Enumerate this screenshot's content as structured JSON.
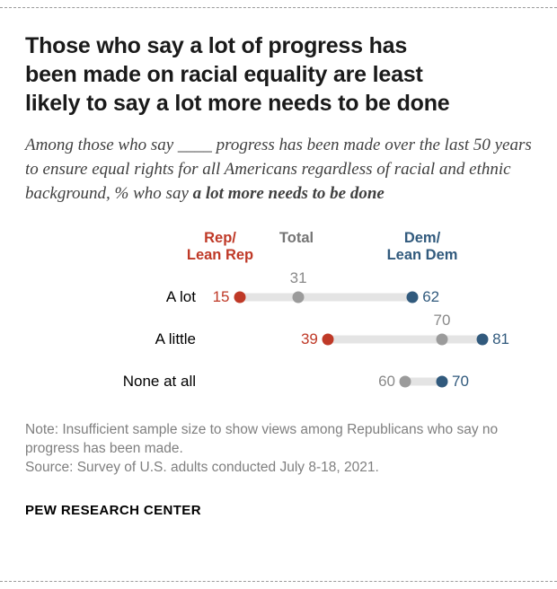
{
  "page": {
    "title_lines": [
      "Those who say a lot of progress has",
      "been made on racial equality are least",
      "likely to say a lot more needs to be done"
    ],
    "subtitle_normal": "Among those who say ____ progress has been made over the last 50 years to ensure equal rights for all Americans regardless of racial and ethnic background, % who say ",
    "subtitle_bold": "a lot more needs to be done",
    "note_line": "Note: Insufficient sample size to show views among Republicans who say no progress has been made.",
    "source_line": "Source: Survey of U.S. adults conducted July 8-18, 2021.",
    "footer": "PEW RESEARCH CENTER"
  },
  "chart_data": {
    "type": "scatter",
    "subtype": "dot-plot",
    "categories": [
      "A lot",
      "A little",
      "None at all"
    ],
    "xlim": [
      0,
      100
    ],
    "grid": false,
    "legend_position": "top",
    "track_color": "#e4e4e4",
    "series": [
      {
        "id": "rep",
        "name": "Rep/Lean Rep",
        "label_lines": [
          "Rep/",
          "Lean Rep"
        ],
        "dot_color": "#bf3927",
        "text_color": "#bf3927",
        "values": [
          15,
          39,
          null
        ]
      },
      {
        "id": "total",
        "name": "Total",
        "label_lines": [
          "Total"
        ],
        "dot_color": "#9b9b9b",
        "text_color": "#898989",
        "legend_color": "#757575",
        "values": [
          31,
          70,
          60
        ]
      },
      {
        "id": "dem",
        "name": "Dem/Lean Dem",
        "label_lines": [
          "Dem/",
          "Lean Dem"
        ],
        "dot_color": "#315a7d",
        "text_color": "#315a7d",
        "values": [
          62,
          81,
          70
        ]
      }
    ],
    "label_positions": [
      {
        "rep": "left",
        "total": "above",
        "dem": "right"
      },
      {
        "rep": "left",
        "total": "above",
        "dem": "right"
      },
      {
        "total": "left",
        "dem": "right"
      }
    ]
  }
}
